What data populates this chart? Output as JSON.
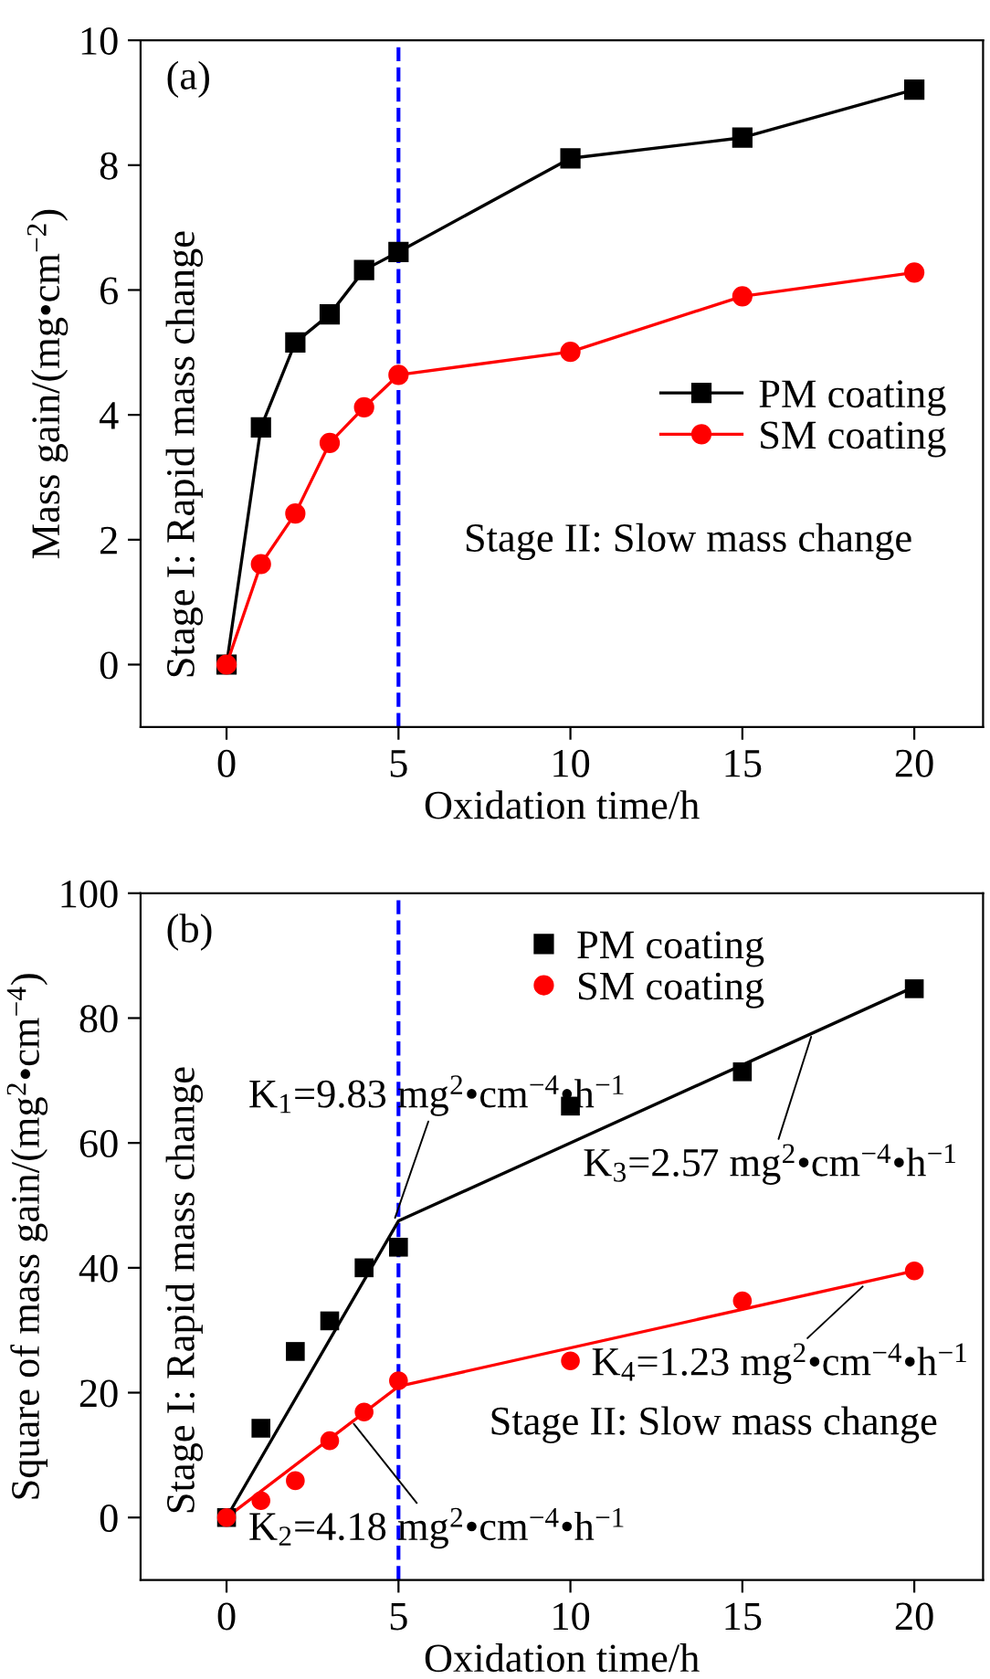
{
  "chart_data": [
    {
      "type": "line",
      "title": "(a)",
      "xlabel": "Oxidation time/h",
      "ylabel": "Mass gain/(mg•cm$^{−2}$)",
      "x": [
        0,
        1,
        2,
        3,
        4,
        5,
        10,
        15,
        20
      ],
      "series": [
        {
          "name": "PM coating",
          "color": "#000000",
          "marker": "square",
          "values": [
            0,
            3.8,
            5.16,
            5.61,
            6.32,
            6.61,
            8.11,
            8.44,
            9.21
          ]
        },
        {
          "name": "SM coating",
          "color": "#ff0000",
          "marker": "circle",
          "values": [
            0,
            1.61,
            2.42,
            3.55,
            4.12,
            4.64,
            5.01,
            5.9,
            6.28
          ]
        }
      ],
      "xlim": [
        -2.5,
        22
      ],
      "xticks": [
        0,
        5,
        10,
        15,
        20
      ],
      "ylim": [
        -1,
        10
      ],
      "yticks": [
        0,
        2,
        4,
        6,
        8,
        10
      ],
      "ref_lines": [
        {
          "axis": "x",
          "value": 5,
          "color": "#0000ff",
          "line_style": "dashed"
        }
      ],
      "annotations": [
        "Stage I: Rapid mass change",
        "Stage II: Slow mass change"
      ],
      "legend": "right",
      "grid": false
    },
    {
      "type": "scatter",
      "title": "(b)",
      "xlabel": "Oxidation time/h",
      "ylabel": "Square of mass gain/(mg$^{2}$•cm$^{−4}$)",
      "x": [
        0,
        1,
        2,
        3,
        4,
        5,
        10,
        15,
        20
      ],
      "series": [
        {
          "name": "PM coating",
          "color": "#000000",
          "marker": "square",
          "values": [
            0,
            14.3,
            26.6,
            31.5,
            40.0,
            43.3,
            65.9,
            71.4,
            84.7
          ]
        },
        {
          "name": "SM coating",
          "color": "#ff0000",
          "marker": "circle",
          "values": [
            0,
            2.7,
            5.9,
            12.3,
            16.9,
            21.9,
            25.1,
            34.7,
            39.5
          ]
        },
        {
          "type": "line",
          "color": "#000000",
          "x": [
            0,
            5,
            20
          ],
          "values": [
            0,
            47.5,
            85
          ]
        },
        {
          "type": "line",
          "color": "#ff0000",
          "x": [
            0,
            5,
            20
          ],
          "values": [
            0,
            21,
            39.5
          ]
        }
      ],
      "xlim": [
        -2.5,
        22
      ],
      "xticks": [
        0,
        5,
        10,
        15,
        20
      ],
      "ylim": [
        -10,
        100
      ],
      "yticks": [
        0,
        20,
        40,
        60,
        80,
        100
      ],
      "ref_lines": [
        {
          "axis": "x",
          "value": 5,
          "color": "#0000ff",
          "line_style": "dashed"
        }
      ],
      "annotations": [
        {
          "text": "K$_{1}$=9.83 mg$^{2}$•cm$^{−4}$•h$^{−1}$",
          "x": 4.9,
          "y": 48
        },
        {
          "text": "K$_{3}$=2.57 mg$^{2}$•cm$^{−4}$•h$^{−1}$",
          "x": 17,
          "y": 77
        },
        {
          "text": "K$_{4}$=1.23 mg$^{2}$•cm$^{−4}$•h$^{−1}$",
          "x": 18.5,
          "y": 37
        },
        {
          "text": "K$_{2}$=4.18 mg$^{2}$•cm$^{−4}$•h$^{−1}$",
          "x": 3.7,
          "y": 15
        },
        "Stage I: Rapid mass change",
        "Stage II: Slow mass change"
      ],
      "legend": "top",
      "grid": false
    }
  ]
}
